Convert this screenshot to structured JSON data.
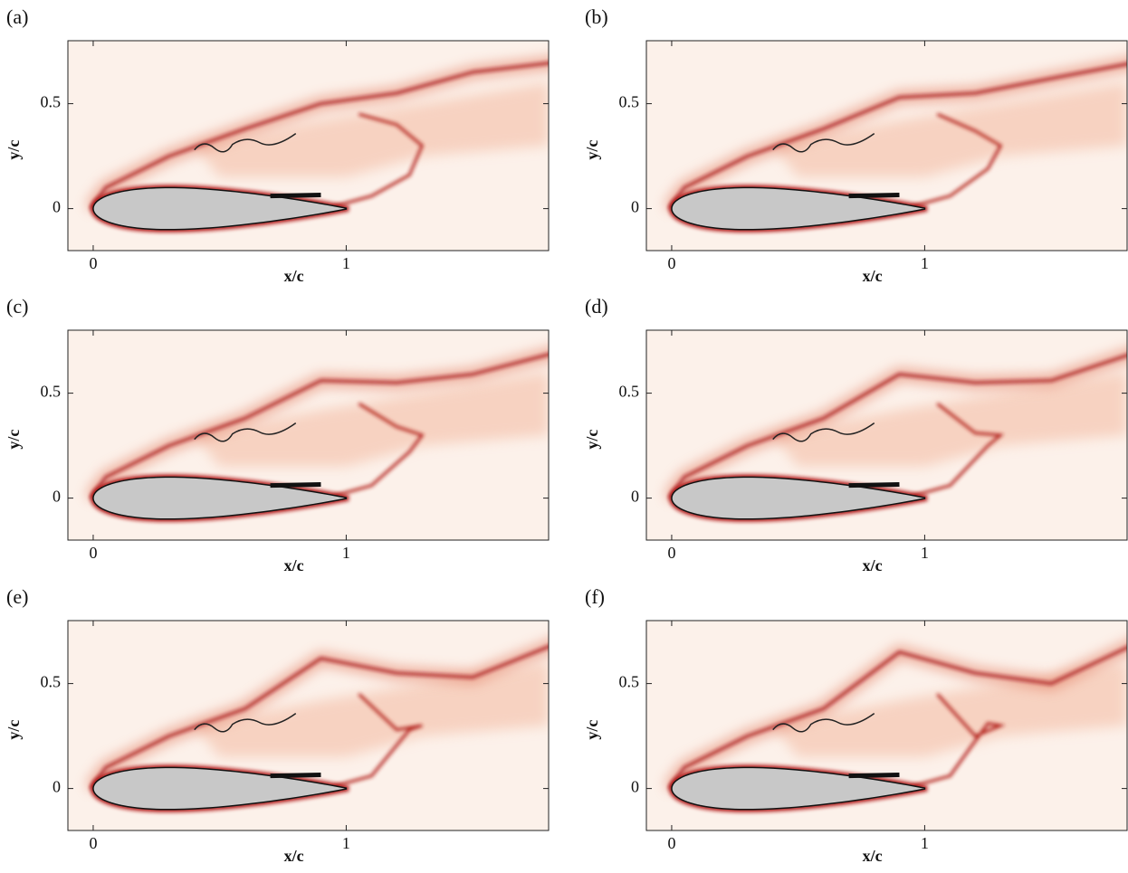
{
  "chart_data": [
    {
      "type": "contour",
      "panel": "(a)",
      "xlabel": "x/c",
      "ylabel": "y/c",
      "xlim": [
        -0.1,
        1.8
      ],
      "ylim": [
        -0.2,
        0.8
      ],
      "xticks": [
        0,
        1
      ],
      "yticks": [
        0,
        0.5
      ]
    },
    {
      "type": "contour",
      "panel": "(b)",
      "xlabel": "x/c",
      "ylabel": "y/c",
      "xlim": [
        -0.1,
        1.8
      ],
      "ylim": [
        -0.2,
        0.8
      ],
      "xticks": [
        0,
        1
      ],
      "yticks": [
        0,
        0.5
      ]
    },
    {
      "type": "contour",
      "panel": "(c)",
      "xlabel": "x/c",
      "ylabel": "y/c",
      "xlim": [
        -0.1,
        1.8
      ],
      "ylim": [
        -0.2,
        0.8
      ],
      "xticks": [
        0,
        1
      ],
      "yticks": [
        0,
        0.5
      ]
    },
    {
      "type": "contour",
      "panel": "(d)",
      "xlabel": "x/c",
      "ylabel": "y/c",
      "xlim": [
        -0.1,
        1.8
      ],
      "ylim": [
        -0.2,
        0.8
      ],
      "xticks": [
        0,
        1
      ],
      "yticks": [
        0,
        0.5
      ]
    },
    {
      "type": "contour",
      "panel": "(e)",
      "xlabel": "x/c",
      "ylabel": "y/c",
      "xlim": [
        -0.1,
        1.8
      ],
      "ylim": [
        -0.2,
        0.8
      ],
      "xticks": [
        0,
        1
      ],
      "yticks": [
        0,
        0.5
      ]
    },
    {
      "type": "contour",
      "panel": "(f)",
      "xlabel": "x/c",
      "ylabel": "y/c",
      "xlim": [
        -0.1,
        1.8
      ],
      "ylim": [
        -0.2,
        0.8
      ],
      "xticks": [
        0,
        1
      ],
      "yticks": [
        0,
        0.5
      ]
    }
  ]
}
